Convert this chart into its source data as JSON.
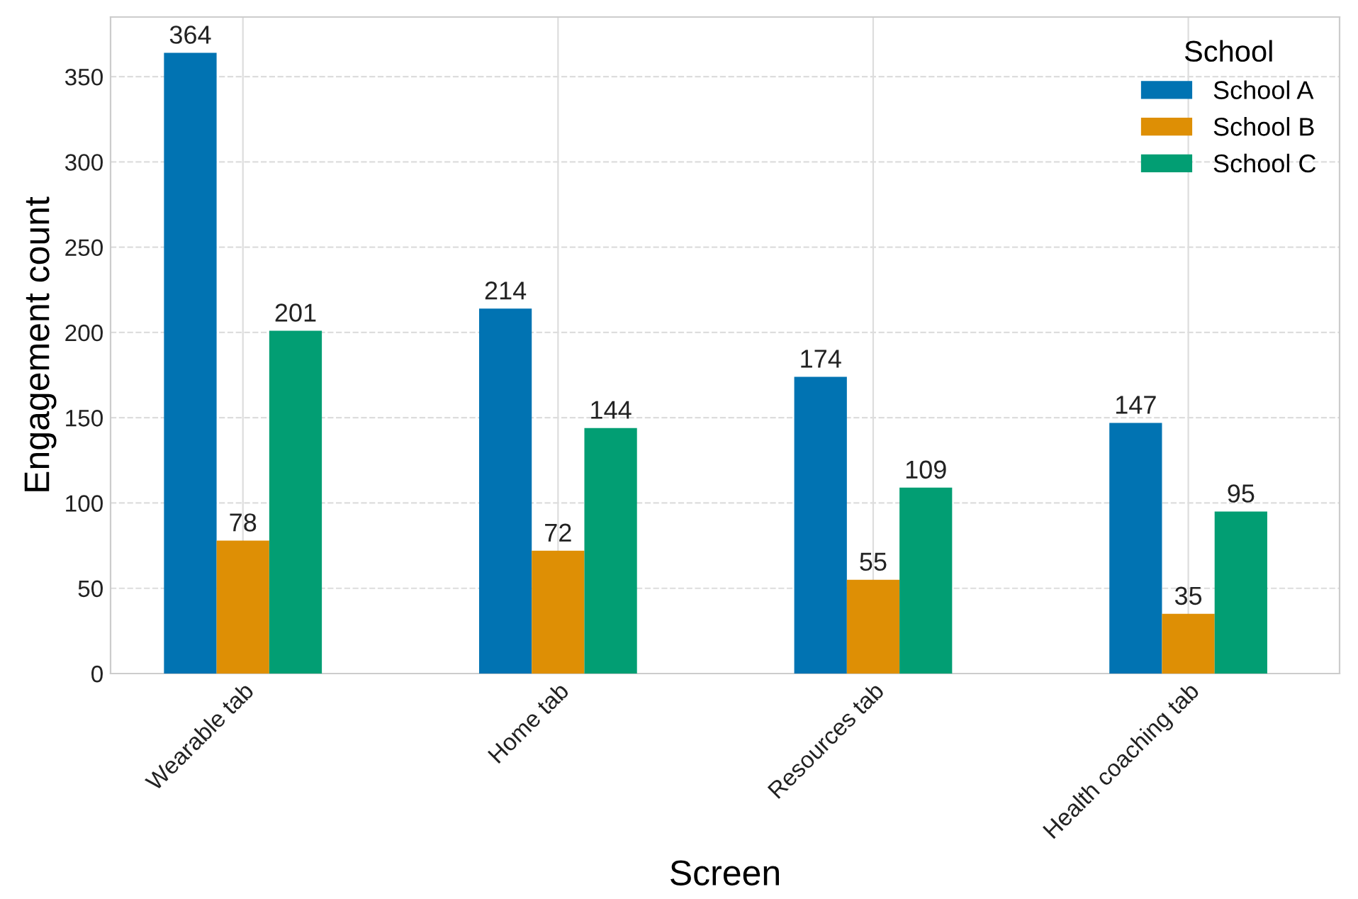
{
  "chart_data": {
    "type": "bar",
    "xlabel": "Screen",
    "ylabel": "Engagement count",
    "legend_title": "School",
    "categories": [
      "Wearable tab",
      "Home tab",
      "Resources tab",
      "Health coaching tab"
    ],
    "series": [
      {
        "name": "School A",
        "color": "#0173b2",
        "values": [
          364,
          214,
          174,
          147
        ]
      },
      {
        "name": "School B",
        "color": "#de8f05",
        "values": [
          78,
          72,
          55,
          35
        ]
      },
      {
        "name": "School C",
        "color": "#029e73",
        "values": [
          201,
          144,
          109,
          95
        ]
      }
    ],
    "ylim": [
      0,
      385
    ],
    "yticks": [
      0,
      50,
      100,
      150,
      200,
      250,
      300,
      350
    ],
    "grid": true,
    "legend": "top right",
    "data_labels": true
  }
}
